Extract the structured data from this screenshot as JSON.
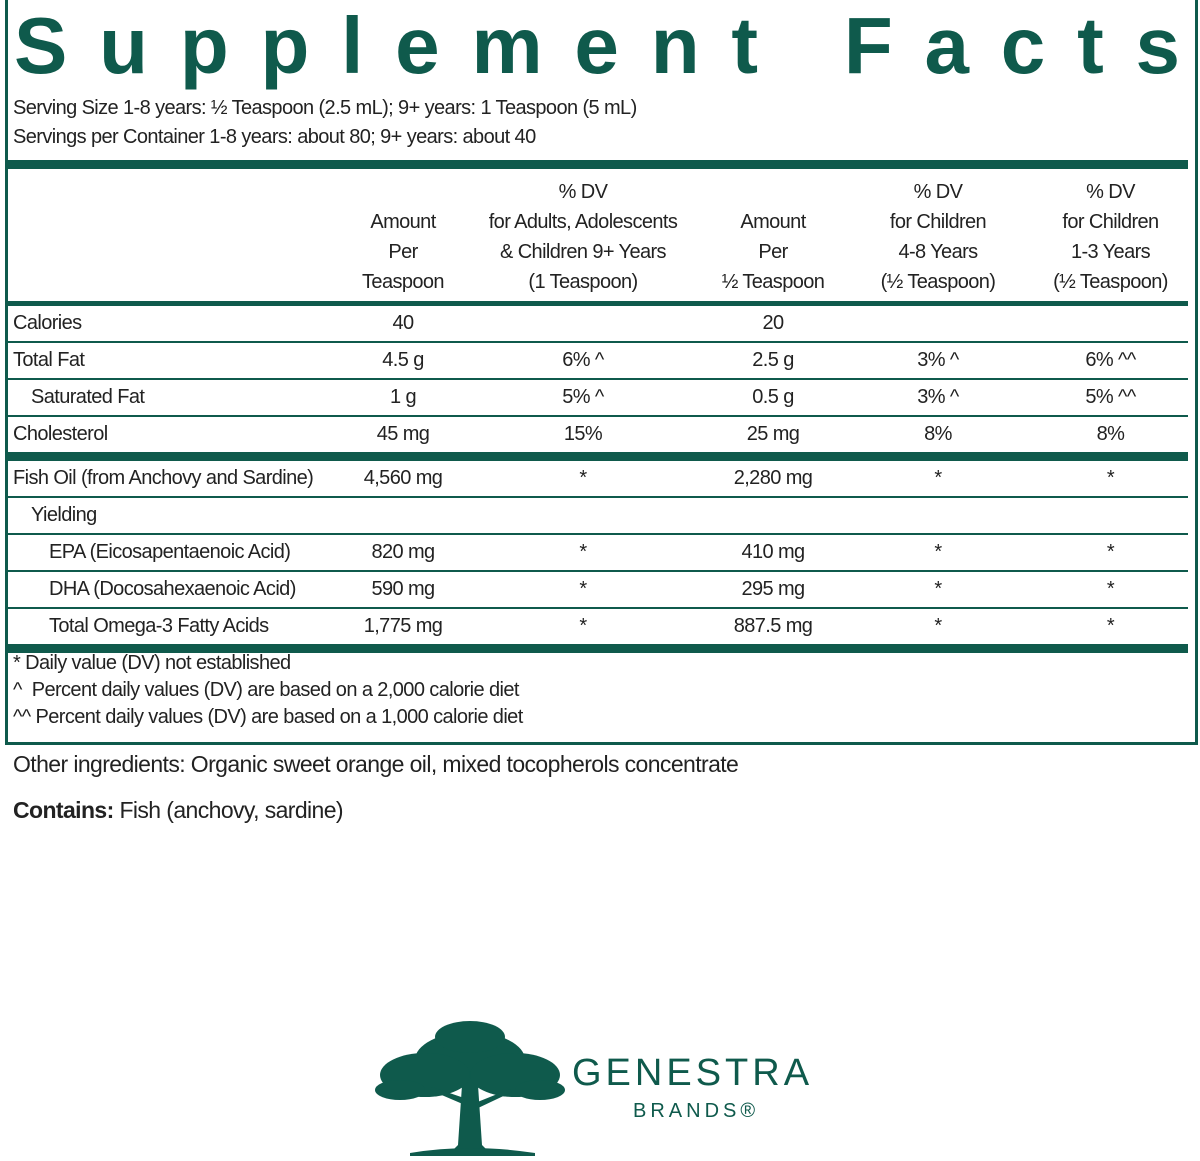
{
  "title": "Supplement Facts",
  "serving_size": "Serving Size 1-8 years: ½ Teaspoon (2.5 mL); 9+ years: 1 Teaspoon (5 mL)",
  "servings_per_container": "Servings per Container 1-8 years: about 80; 9+ years: about 40",
  "table": {
    "headers": [
      [
        "Amount",
        "Per",
        "Teaspoon"
      ],
      [
        "% DV",
        "for Adults, Adolescents",
        "& Children 9+ Years",
        "(1 Teaspoon)"
      ],
      [
        "Amount",
        "Per",
        "½ Teaspoon"
      ],
      [
        "% DV",
        "for Children",
        "4-8 Years",
        "(½ Teaspoon)"
      ],
      [
        "% DV",
        "for Children",
        "1-3 Years",
        "(½ Teaspoon)"
      ]
    ],
    "rows": [
      [
        "Calories",
        "40",
        null,
        "20",
        null,
        null
      ],
      [
        "Total Fat",
        "4.5 g",
        "6% ^",
        "2.5 g",
        "3% ^",
        "6% ^^"
      ],
      [
        "Saturated Fat",
        "1 g",
        "5% ^",
        "0.5 g",
        "3% ^",
        "5% ^^"
      ],
      [
        "Cholesterol",
        "45 mg",
        "15%",
        "25 mg",
        "8%",
        "8%"
      ],
      [
        "Fish Oil (from Anchovy and Sardine)",
        "4,560 mg",
        "*",
        "2,280 mg",
        "*",
        "*"
      ],
      [
        "Yielding",
        null,
        null,
        null,
        null,
        null
      ],
      [
        "EPA (Eicosapentaenoic Acid)",
        "820 mg",
        "*",
        "410 mg",
        "*",
        "*"
      ],
      [
        "DHA (Docosahexaenoic Acid)",
        "590 mg",
        "*",
        "295 mg",
        "*",
        "*"
      ],
      [
        "Total Omega-3 Fatty Acids",
        "1,775 mg",
        "*",
        "887.5 mg",
        "*",
        "*"
      ]
    ]
  },
  "footnotes": [
    "* Daily value (DV) not established",
    "^  Percent daily values (DV) are based on a 2,000 calorie diet",
    "^^ Percent daily values (DV) are based on a 1,000 calorie diet"
  ],
  "other_ingredients": "Other ingredients: Organic sweet orange oil, mixed tocopherols concentrate",
  "contains": {
    "label": "Contains:",
    "text": "Fish (anchovy, sardine)"
  },
  "brand": {
    "name": "GENESTRA",
    "sub": "BRANDS®"
  }
}
